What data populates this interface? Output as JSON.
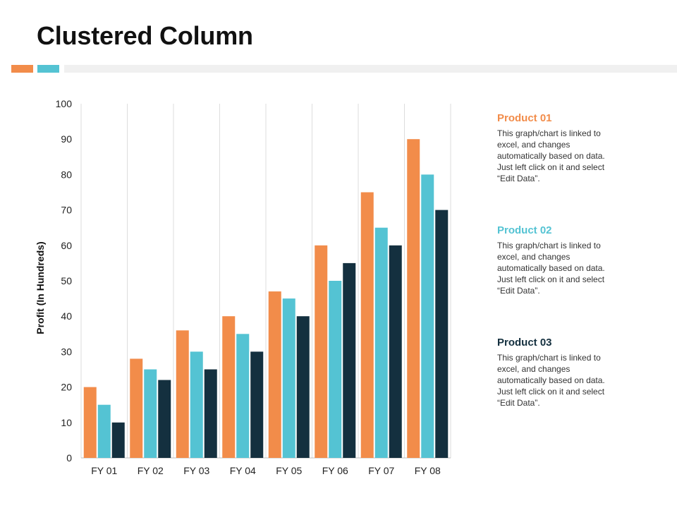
{
  "title": "Clustered Column",
  "colors": {
    "accent_orange": "#f28c4a",
    "accent_teal": "#54c3d3",
    "accent_grey": "#f0f0f0",
    "gridline": "#dddddd"
  },
  "chart_data": {
    "type": "bar",
    "categories": [
      "FY 01",
      "FY 02",
      "FY 03",
      "FY 04",
      "FY 05",
      "FY 06",
      "FY 07",
      "FY 08"
    ],
    "series": [
      {
        "name": "Product 01",
        "color": "#f28c4a",
        "values": [
          20,
          28,
          36,
          40,
          47,
          60,
          75,
          90
        ]
      },
      {
        "name": "Product 02",
        "color": "#54c3d3",
        "values": [
          15,
          25,
          30,
          35,
          45,
          50,
          65,
          80
        ]
      },
      {
        "name": "Product 03",
        "color": "#14303f",
        "values": [
          10,
          22,
          25,
          30,
          40,
          55,
          60,
          70
        ]
      }
    ],
    "ylabel": "Profit (In Hundreds)",
    "xlabel": "",
    "ylim": [
      0,
      100
    ],
    "yticks": [
      0,
      10,
      20,
      30,
      40,
      50,
      60,
      70,
      80,
      90,
      100
    ],
    "grid": "vertical",
    "legend_placement": "right"
  },
  "legend": [
    {
      "name": "Product 01",
      "color": "#f28c4a",
      "description": "This graph/chart is linked to\nexcel, and changes\nautomatically based on data.\nJust left click on it and select\n“Edit Data”."
    },
    {
      "name": "Product 02",
      "color": "#54c3d3",
      "description": "This graph/chart is linked to\nexcel, and changes\nautomatically based on data.\nJust left click on it and select\n“Edit Data”."
    },
    {
      "name": "Product 03",
      "color": "#14303f",
      "description": "This graph/chart is linked to\nexcel, and changes\nautomatically based on data.\nJust left click on it and select\n“Edit Data”."
    }
  ]
}
